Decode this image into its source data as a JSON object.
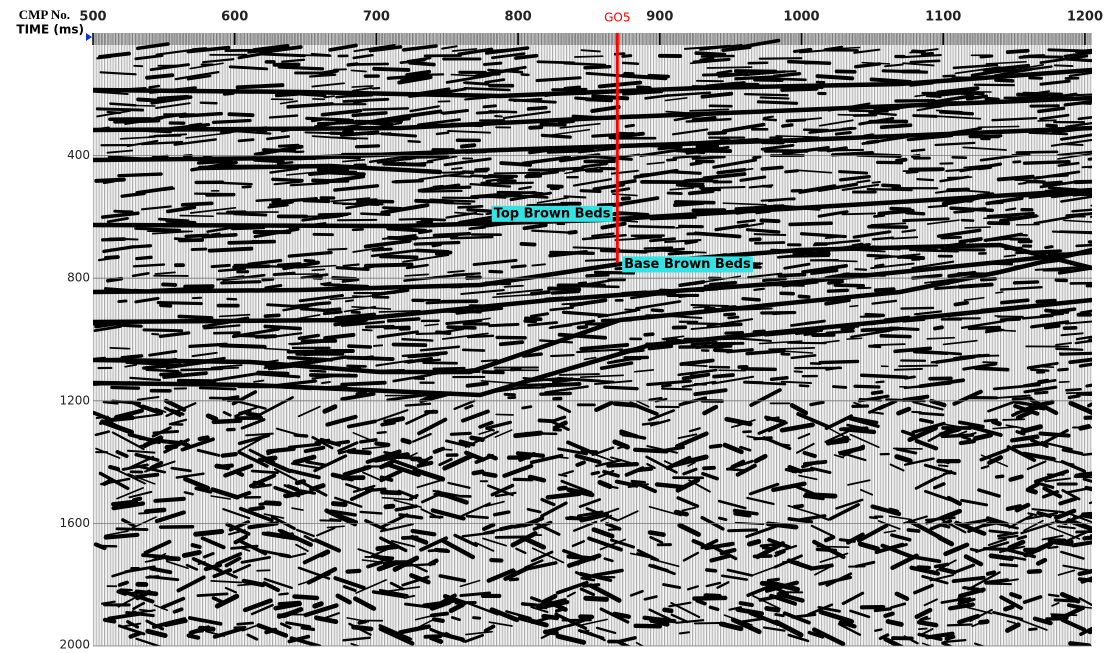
{
  "chart_data": {
    "type": "seismic",
    "x_label": "CMP No.",
    "y_label": "TIME (ms)",
    "xlim": [
      500,
      1205
    ],
    "ylim": [
      0,
      2000
    ],
    "invert_y": true,
    "xticks": [
      500,
      600,
      700,
      800,
      900,
      1000,
      1100,
      1200
    ],
    "yticks": [
      400,
      800,
      1200,
      1600,
      2000
    ],
    "grid": true,
    "well": {
      "name": "GO5",
      "color": "#ff0000",
      "cmp": 870,
      "time": 750
    },
    "annotations": [
      {
        "text": "Top Brown Beds",
        "cmp": 868,
        "time": 590,
        "anchor": "end",
        "color": "#33e3e3"
      },
      {
        "text": "Base Brown Beds",
        "cmp": 872,
        "time": 755,
        "anchor": "start",
        "color": "#33e3e3"
      }
    ]
  }
}
